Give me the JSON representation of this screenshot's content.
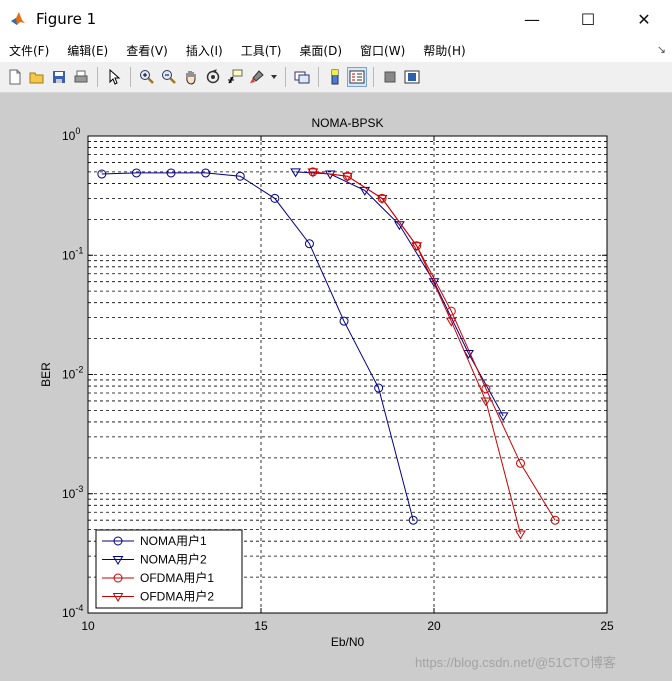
{
  "window": {
    "title": "Figure 1",
    "minimize": "—",
    "maximize": "☐",
    "close": "✕"
  },
  "menu": [
    "文件(F)",
    "编辑(E)",
    "查看(V)",
    "插入(I)",
    "工具(T)",
    "桌面(D)",
    "窗口(W)",
    "帮助(H)"
  ],
  "toolbar_icons": [
    "new-figure-icon",
    "open-file-icon",
    "save-icon",
    "print-icon",
    "pointer-icon",
    "zoom-in-icon",
    "zoom-out-icon",
    "pan-icon",
    "rotate-3d-icon",
    "data-cursor-icon",
    "brush-icon",
    "link-plot-icon",
    "colorbar-icon",
    "legend-icon",
    "hide-plot-tools-icon",
    "show-plot-tools-icon"
  ],
  "colors": {
    "blue": "#00008b",
    "red": "#cc0000",
    "figure_bg": "#cccccc"
  },
  "watermark": "https://blog.csdn.net/@51CTO博客",
  "chart_data": {
    "type": "line",
    "title": "NOMA-BPSK",
    "xlabel": "Eb/N0",
    "ylabel": "BER",
    "xlim": [
      10,
      25
    ],
    "ylim": [
      0.0001,
      1
    ],
    "yscale": "log",
    "xticks": [
      "10",
      "15",
      "20",
      "25"
    ],
    "yticks": [
      {
        "base": "10",
        "exp": "0"
      },
      {
        "base": "10",
        "exp": "-1"
      },
      {
        "base": "10",
        "exp": "-2"
      },
      {
        "base": "10",
        "exp": "-3"
      },
      {
        "base": "10",
        "exp": "-4"
      }
    ],
    "grid": true,
    "legend_position": "bottom-left",
    "series": [
      {
        "name": "NOMA用户1",
        "color": "#00008b",
        "marker": "circle",
        "x": [
          10.4,
          11.4,
          12.4,
          13.4,
          14.4,
          15.4,
          16.4,
          17.4,
          18.4,
          19.4
        ],
        "y": [
          0.48,
          0.49,
          0.49,
          0.49,
          0.46,
          0.3,
          0.125,
          0.028,
          0.0077,
          0.0006
        ]
      },
      {
        "name": "NOMA用户2",
        "color": "#00008b",
        "marker": "triangle-down",
        "x": [
          16.0,
          17.0,
          18.0,
          19.0,
          20.0,
          21.0,
          22.0
        ],
        "y": [
          0.5,
          0.48,
          0.35,
          0.18,
          0.06,
          0.015,
          0.0045
        ]
      },
      {
        "name": "OFDMA用户1",
        "color": "#cc0000",
        "marker": "circle",
        "x": [
          16.5,
          17.5,
          18.5,
          19.5,
          20.5,
          21.5,
          22.5,
          23.5
        ],
        "y": [
          0.5,
          0.46,
          0.3,
          0.12,
          0.034,
          0.0076,
          0.0018,
          0.0006
        ]
      },
      {
        "name": "OFDMA用户2",
        "color": "#cc0000",
        "marker": "triangle-down",
        "x": [
          16.5,
          17.5,
          18.5,
          19.5,
          20.5,
          21.5,
          22.5
        ],
        "y": [
          0.5,
          0.46,
          0.3,
          0.12,
          0.028,
          0.006,
          0.00046
        ]
      }
    ]
  }
}
